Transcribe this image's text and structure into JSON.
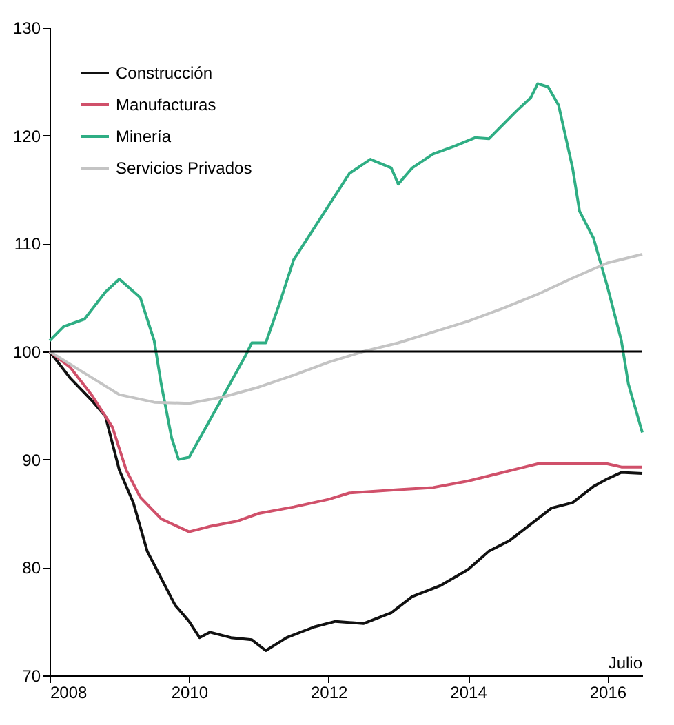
{
  "chart_data": {
    "type": "line",
    "xlim": [
      2008,
      2016.5
    ],
    "xticks": [
      2008,
      2010,
      2012,
      2014,
      2016
    ],
    "ylim": [
      70,
      130
    ],
    "yticks": [
      70,
      80,
      90,
      100,
      110,
      120,
      130
    ],
    "grid": false,
    "legend": "top left",
    "line_style": "solid",
    "marker": "none",
    "annotations": [
      "Julio"
    ],
    "ref_lines": [
      {
        "axis": "y",
        "value": 100,
        "color": "#000000"
      }
    ],
    "series": [
      {
        "name": "Construcción",
        "color": "#111111",
        "x": [
          2008,
          2008.3,
          2008.6,
          2008.8,
          2009,
          2009.2,
          2009.4,
          2009.6,
          2009.8,
          2010,
          2010.15,
          2010.3,
          2010.6,
          2010.9,
          2011.1,
          2011.4,
          2011.8,
          2012.1,
          2012.5,
          2012.9,
          2013.2,
          2013.6,
          2014,
          2014.3,
          2014.6,
          2014.9,
          2015.2,
          2015.5,
          2015.8,
          2016,
          2016.2,
          2016.5
        ],
        "values": [
          100,
          97.5,
          95.5,
          94,
          89,
          86,
          81.5,
          79,
          76.5,
          75,
          73.5,
          74,
          73.5,
          73.3,
          72.3,
          73.5,
          74.5,
          75,
          74.8,
          75.8,
          77.3,
          78.3,
          79.8,
          81.5,
          82.5,
          84,
          85.5,
          86,
          87.5,
          88.2,
          88.8,
          88.7
        ]
      },
      {
        "name": "Manufacturas",
        "color": "#d0506a",
        "x": [
          2008,
          2008.3,
          2008.6,
          2008.9,
          2009.1,
          2009.3,
          2009.6,
          2010,
          2010.3,
          2010.7,
          2011,
          2011.5,
          2012,
          2012.3,
          2013,
          2013.5,
          2014,
          2014.5,
          2015,
          2015.5,
          2016,
          2016.2,
          2016.5
        ],
        "values": [
          100,
          98.5,
          96,
          93,
          89,
          86.5,
          84.5,
          83.3,
          83.8,
          84.3,
          85,
          85.6,
          86.3,
          86.9,
          87.2,
          87.4,
          88,
          88.8,
          89.6,
          89.6,
          89.6,
          89.3,
          89.3
        ]
      },
      {
        "name": "Minería",
        "color": "#2fae84",
        "x": [
          2008,
          2008.2,
          2008.5,
          2008.8,
          2009,
          2009.3,
          2009.5,
          2009.6,
          2009.75,
          2009.85,
          2010,
          2010.2,
          2010.5,
          2010.8,
          2010.9,
          2011.1,
          2011.3,
          2011.5,
          2011.8,
          2012.1,
          2012.3,
          2012.6,
          2012.9,
          2013,
          2013.2,
          2013.5,
          2013.8,
          2014.1,
          2014.3,
          2014.5,
          2014.7,
          2014.9,
          2015,
          2015.15,
          2015.3,
          2015.5,
          2015.6,
          2015.8,
          2016,
          2016.2,
          2016.3,
          2016.5
        ],
        "values": [
          101,
          102.3,
          103,
          105.5,
          106.7,
          105,
          101,
          97,
          92,
          90,
          90.2,
          92.5,
          96,
          99.5,
          100.8,
          100.8,
          104.5,
          108.5,
          111.5,
          114.5,
          116.5,
          117.8,
          117,
          115.5,
          117,
          118.3,
          119,
          119.8,
          119.7,
          121,
          122.3,
          123.5,
          124.8,
          124.5,
          122.8,
          117,
          113,
          110.5,
          106,
          101,
          97,
          92.5
        ]
      },
      {
        "name": "Servicios Privados",
        "color": "#c4c4c4",
        "x": [
          2008,
          2008.5,
          2009,
          2009.5,
          2010,
          2010.5,
          2011,
          2011.5,
          2012,
          2012.5,
          2013,
          2013.5,
          2014,
          2014.5,
          2015,
          2015.5,
          2016,
          2016.5
        ],
        "values": [
          100,
          98,
          96,
          95.3,
          95.2,
          95.8,
          96.7,
          97.8,
          99,
          100,
          100.8,
          101.8,
          102.8,
          104,
          105.3,
          106.8,
          108.2,
          109
        ]
      }
    ]
  }
}
